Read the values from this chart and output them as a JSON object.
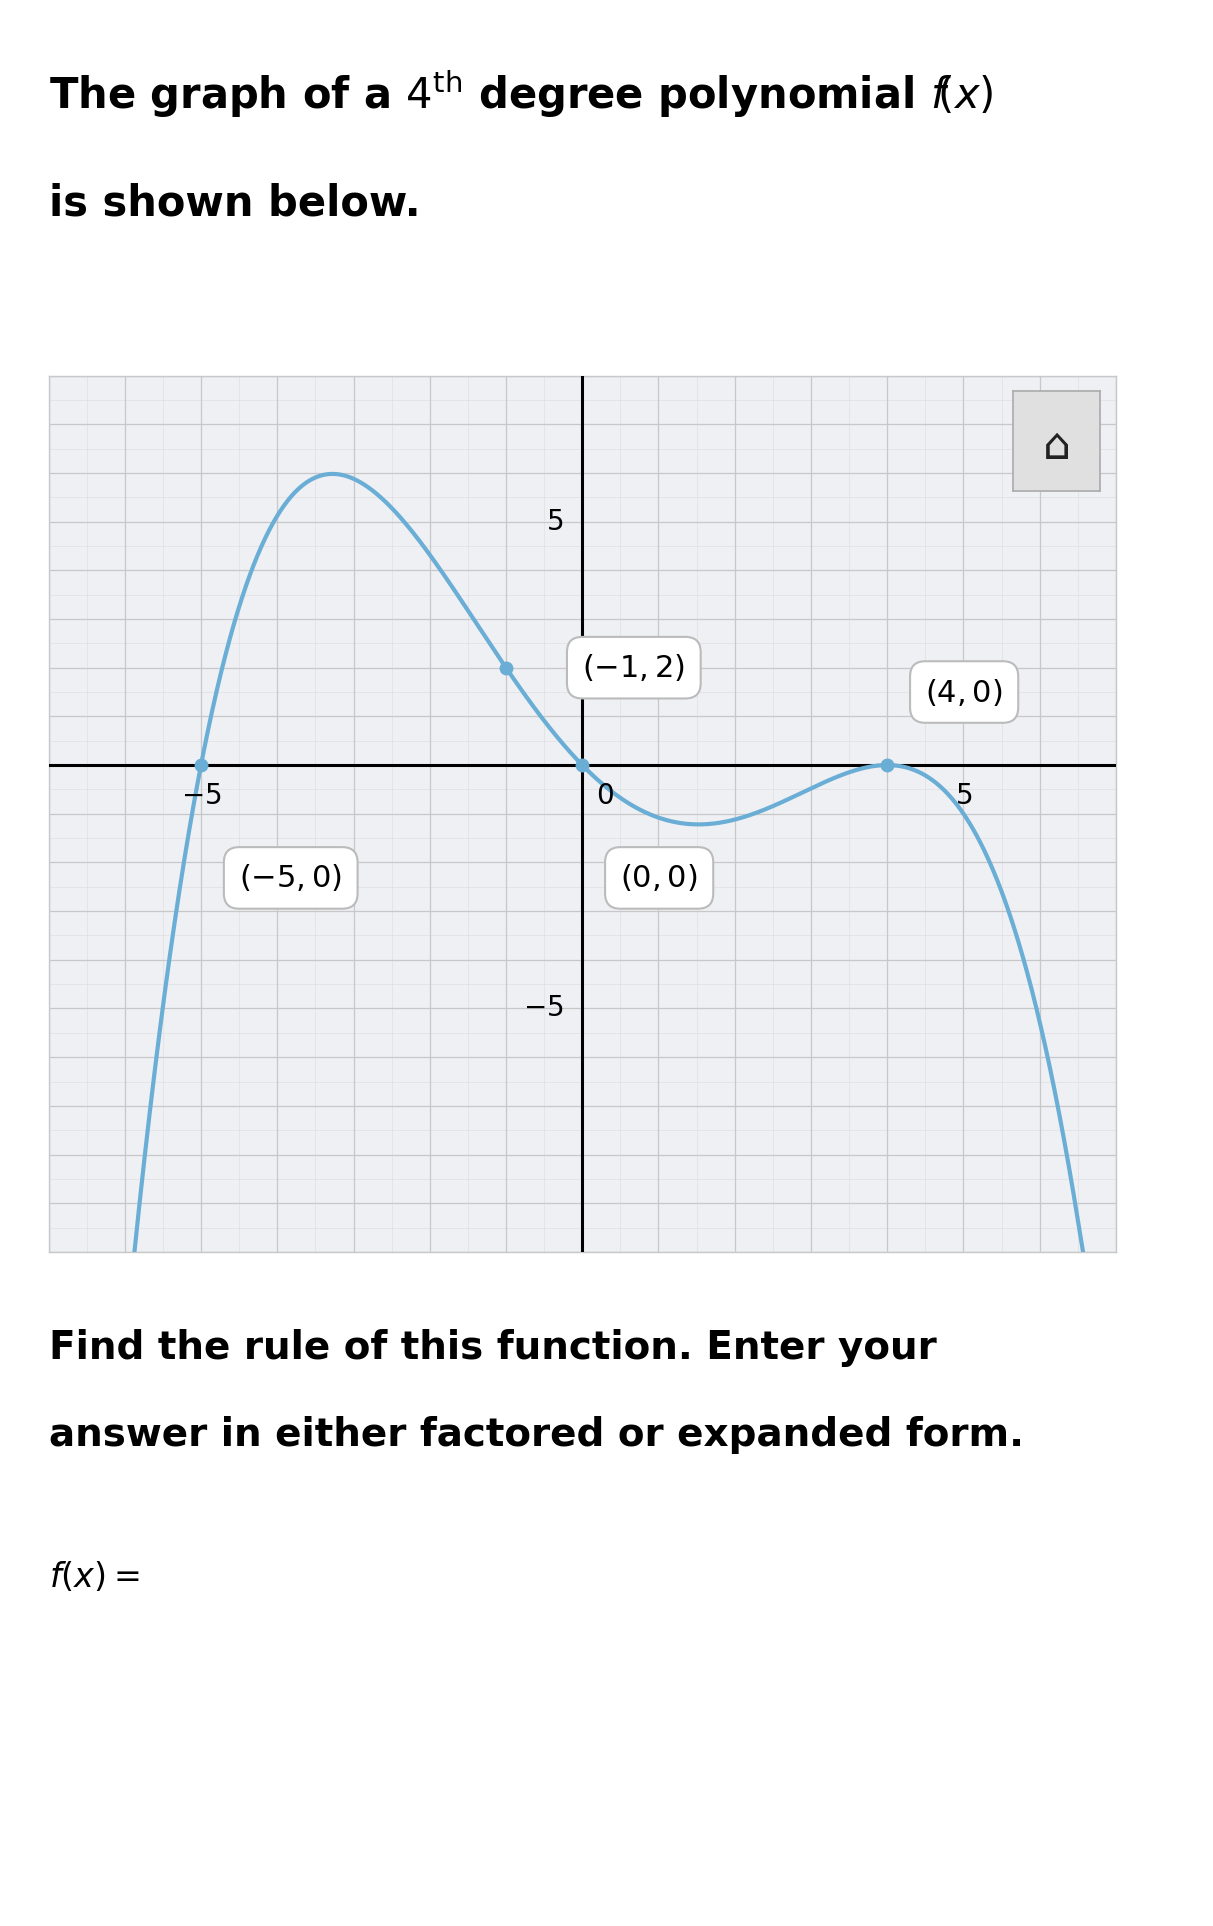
{
  "title_line1": "The graph of a $4^{\\mathrm{th}}$ degree polynomial $f(x)$",
  "title_line2": "is shown below.",
  "bottom_text_line1": "Find the rule of this function. Enter your",
  "bottom_text_line2": "answer in either factored or expanded form.",
  "bottom_text_line3": "f(x) =",
  "curve_color": "#6aaed6",
  "curve_linewidth": 3.0,
  "bg_color": "#ffffff",
  "grid_color_major": "#c8c8c8",
  "grid_color_minor": "#e0e0e0",
  "axis_color": "#000000",
  "xlim": [
    -7,
    7
  ],
  "ylim": [
    -10,
    8
  ],
  "graph_bg_color": "#eef0f4",
  "home_btn_color": "#e0e0e0"
}
